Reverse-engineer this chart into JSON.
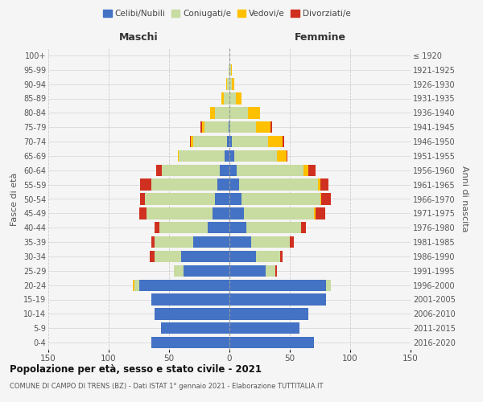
{
  "age_groups": [
    "0-4",
    "5-9",
    "10-14",
    "15-19",
    "20-24",
    "25-29",
    "30-34",
    "35-39",
    "40-44",
    "45-49",
    "50-54",
    "55-59",
    "60-64",
    "65-69",
    "70-74",
    "75-79",
    "80-84",
    "85-89",
    "90-94",
    "95-99",
    "100+"
  ],
  "birth_years": [
    "2016-2020",
    "2011-2015",
    "2006-2010",
    "2001-2005",
    "1996-2000",
    "1991-1995",
    "1986-1990",
    "1981-1985",
    "1976-1980",
    "1971-1975",
    "1966-1970",
    "1961-1965",
    "1956-1960",
    "1951-1955",
    "1946-1950",
    "1941-1945",
    "1936-1940",
    "1931-1935",
    "1926-1930",
    "1921-1925",
    "≤ 1920"
  ],
  "males": {
    "celibi": [
      65,
      57,
      62,
      65,
      75,
      38,
      40,
      30,
      18,
      14,
      12,
      10,
      8,
      4,
      2,
      1,
      0,
      0,
      0,
      0,
      0
    ],
    "coniugati": [
      0,
      0,
      0,
      0,
      4,
      8,
      22,
      32,
      40,
      55,
      58,
      55,
      48,
      38,
      28,
      20,
      12,
      5,
      2,
      1,
      0
    ],
    "vedovi": [
      0,
      0,
      0,
      0,
      1,
      0,
      0,
      0,
      0,
      0,
      0,
      0,
      0,
      1,
      2,
      2,
      4,
      2,
      1,
      0,
      0
    ],
    "divorziati": [
      0,
      0,
      0,
      0,
      0,
      0,
      4,
      3,
      4,
      6,
      4,
      9,
      5,
      0,
      1,
      1,
      0,
      0,
      0,
      0,
      0
    ]
  },
  "females": {
    "nubili": [
      70,
      58,
      65,
      80,
      80,
      30,
      22,
      18,
      14,
      12,
      10,
      8,
      6,
      4,
      2,
      0,
      0,
      0,
      0,
      0,
      0
    ],
    "coniugate": [
      0,
      0,
      0,
      0,
      4,
      8,
      20,
      32,
      45,
      58,
      65,
      65,
      55,
      35,
      30,
      22,
      15,
      5,
      2,
      1,
      0
    ],
    "vedove": [
      0,
      0,
      0,
      0,
      0,
      0,
      0,
      0,
      0,
      1,
      1,
      2,
      4,
      8,
      12,
      12,
      10,
      5,
      2,
      1,
      0
    ],
    "divorziate": [
      0,
      0,
      0,
      0,
      0,
      1,
      2,
      3,
      4,
      8,
      8,
      7,
      6,
      1,
      1,
      1,
      0,
      0,
      0,
      0,
      0
    ]
  },
  "colors": {
    "celibi": "#4472c4",
    "coniugati": "#c8dba0",
    "vedovi": "#ffc000",
    "divorziati": "#d03020"
  },
  "xlim": 150,
  "title_main": "Popolazione per età, sesso e stato civile - 2021",
  "title_sub": "COMUNE DI CAMPO DI TRENS (BZ) - Dati ISTAT 1° gennaio 2021 - Elaborazione TUTTITALIA.IT",
  "ylabel_left": "Fasce di età",
  "ylabel_right": "Anni di nascita",
  "xlabel_maschi": "Maschi",
  "xlabel_femmine": "Femmine",
  "bg_color": "#f5f5f5",
  "grid_color": "#cccccc"
}
